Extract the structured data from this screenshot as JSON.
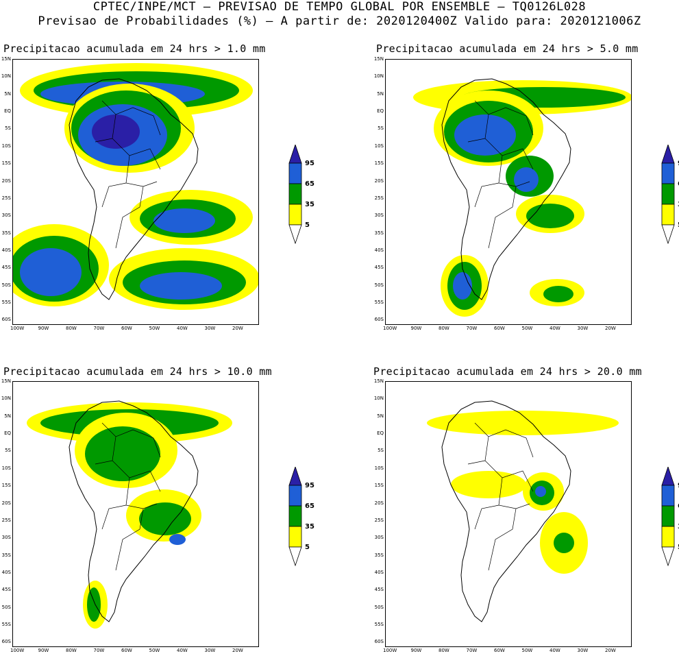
{
  "header": {
    "line1": "CPTEC/INPE/MCT — PREVISAO DE TEMPO GLOBAL POR ENSEMBLE — TQ0126L028",
    "line2": "Previsao de Probabilidades (%) —  A partir de: 2020120400Z  Valido para: 2020121006Z"
  },
  "panels": [
    {
      "title": "Precipitacao acumulada em 24 hrs > 1.0 mm"
    },
    {
      "title": "Precipitacao acumulada em 24 hrs > 5.0 mm"
    },
    {
      "title": "Precipitacao acumulada em 24 hrs > 10.0 mm"
    },
    {
      "title": "Precipitacao acumulada em 24 hrs > 20.0 mm"
    }
  ],
  "lat_labels": [
    "15N",
    "10N",
    "5N",
    "EQ",
    "5S",
    "10S",
    "15S",
    "20S",
    "25S",
    "30S",
    "35S",
    "40S",
    "45S",
    "50S",
    "55S",
    "60S"
  ],
  "lon_labels": [
    "100W",
    "90W",
    "80W",
    "70W",
    "60W",
    "50W",
    "40W",
    "30W",
    "20W"
  ],
  "colorbar": {
    "levels": [
      "95",
      "65",
      "35",
      "5"
    ],
    "colors": {
      "yellow": "#ffff00",
      "green": "#009900",
      "blue": "#1f5fd6",
      "dark_blue": "#2a1fa6"
    }
  }
}
